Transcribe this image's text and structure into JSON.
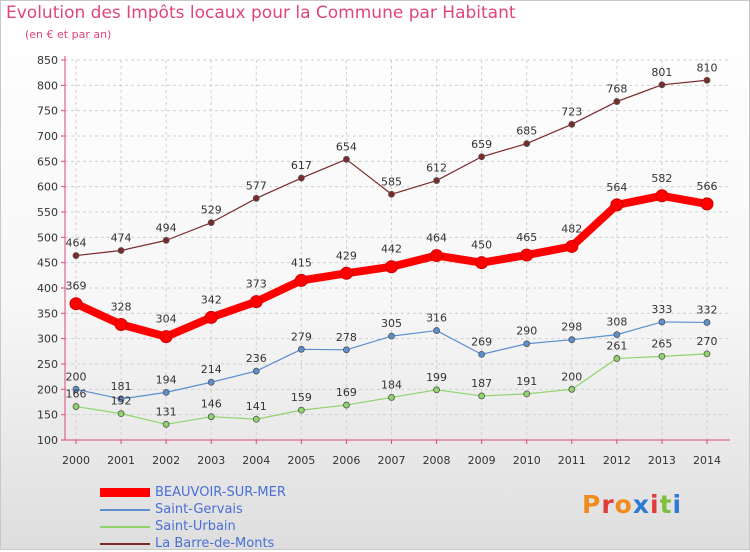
{
  "title": "Evolution des Impôts locaux pour la Commune par Habitant",
  "subtitle": "(en € et par an)",
  "logo_text": "Proxiti",
  "logo_colors": [
    "#f08c1e",
    "#e03c3c",
    "#f08c1e",
    "#2e7bd6",
    "#e03c3c",
    "#7dbf3a",
    "#2e7bd6"
  ],
  "chart_data": {
    "type": "line",
    "categories": [
      "2000",
      "2001",
      "2002",
      "2003",
      "2004",
      "2005",
      "2006",
      "2007",
      "2008",
      "2009",
      "2010",
      "2011",
      "2012",
      "2013",
      "2014"
    ],
    "ylim": [
      100,
      850
    ],
    "yticks": [
      100,
      150,
      200,
      250,
      300,
      350,
      400,
      450,
      500,
      550,
      600,
      650,
      700,
      750,
      800,
      850
    ],
    "grid": true,
    "legend_position": "bottom-left",
    "series": [
      {
        "name": "BEAUVOIR-SUR-MER",
        "color": "#ff0000",
        "values": [
          369,
          328,
          304,
          342,
          373,
          415,
          429,
          442,
          464,
          450,
          465,
          482,
          564,
          582,
          566
        ]
      },
      {
        "name": "Saint-Gervais",
        "color": "#5b8fd0",
        "values": [
          200,
          181,
          194,
          214,
          236,
          279,
          278,
          305,
          316,
          269,
          290,
          298,
          308,
          333,
          332
        ]
      },
      {
        "name": "Saint-Urbain",
        "color": "#8fd46b",
        "values": [
          166,
          152,
          131,
          146,
          141,
          159,
          169,
          184,
          199,
          187,
          191,
          200,
          261,
          265,
          270
        ]
      },
      {
        "name": "La Barre-de-Monts",
        "color": "#7a2a2a",
        "values": [
          464,
          474,
          494,
          529,
          577,
          617,
          654,
          585,
          612,
          659,
          685,
          723,
          768,
          801,
          810
        ]
      }
    ]
  }
}
